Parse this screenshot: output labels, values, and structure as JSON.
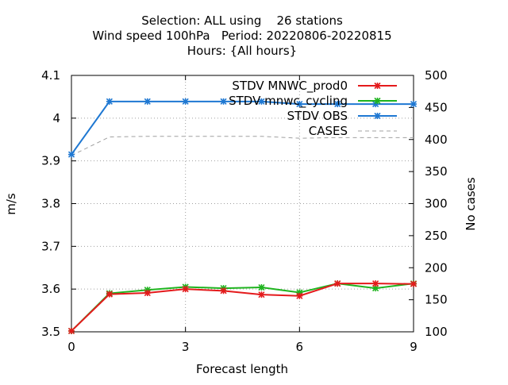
{
  "chart_data": {
    "type": "line",
    "title_lines": [
      "Selection: ALL using    26 stations",
      "Wind speed 100hPa   Period: 20220806-20220815",
      "Hours: {All hours}"
    ],
    "xlabel": "Forecast length",
    "ylabel": "m/s",
    "y2label": "No cases",
    "xlim": [
      0,
      9
    ],
    "ylim": [
      3.5,
      4.1
    ],
    "y2lim": [
      100,
      500
    ],
    "x_ticks": [
      0,
      3,
      6,
      9
    ],
    "y_ticks": [
      3.5,
      3.6,
      3.7,
      3.8,
      3.9,
      4.0,
      4.1
    ],
    "y_tick_labels": [
      "3.5",
      "3.6",
      "3.7",
      "3.8",
      "3.9",
      "4",
      "4.1"
    ],
    "y2_ticks": [
      100,
      150,
      200,
      250,
      300,
      350,
      400,
      450,
      500
    ],
    "grid": true,
    "legend_position": "top-right",
    "x": [
      0,
      1,
      2,
      3,
      4,
      5,
      6,
      7,
      8,
      9
    ],
    "series": [
      {
        "name": "STDV MNWC_prod0",
        "axis": "left",
        "color": "#e41a1c",
        "marker": "x",
        "values": [
          3.502,
          3.588,
          3.591,
          3.6,
          3.596,
          3.587,
          3.584,
          3.613,
          3.613,
          3.612
        ]
      },
      {
        "name": "STDV mnwc_cycling",
        "axis": "left",
        "color": "#1fb41f",
        "marker": "x",
        "values": [
          3.502,
          3.59,
          3.598,
          3.605,
          3.602,
          3.604,
          3.592,
          3.613,
          3.602,
          3.613
        ]
      },
      {
        "name": "STDV OBS",
        "axis": "left",
        "color": "#1f78d2",
        "marker": "x",
        "values": [
          3.915,
          4.039,
          4.039,
          4.039,
          4.039,
          4.039,
          4.033,
          4.033,
          4.033,
          4.033
        ]
      },
      {
        "name": "CASES",
        "axis": "right",
        "color": "#a0a0a0",
        "dashed": true,
        "values": [
          375,
          404,
          405,
          405,
          405,
          405,
          402,
          403,
          403,
          403
        ]
      }
    ]
  }
}
